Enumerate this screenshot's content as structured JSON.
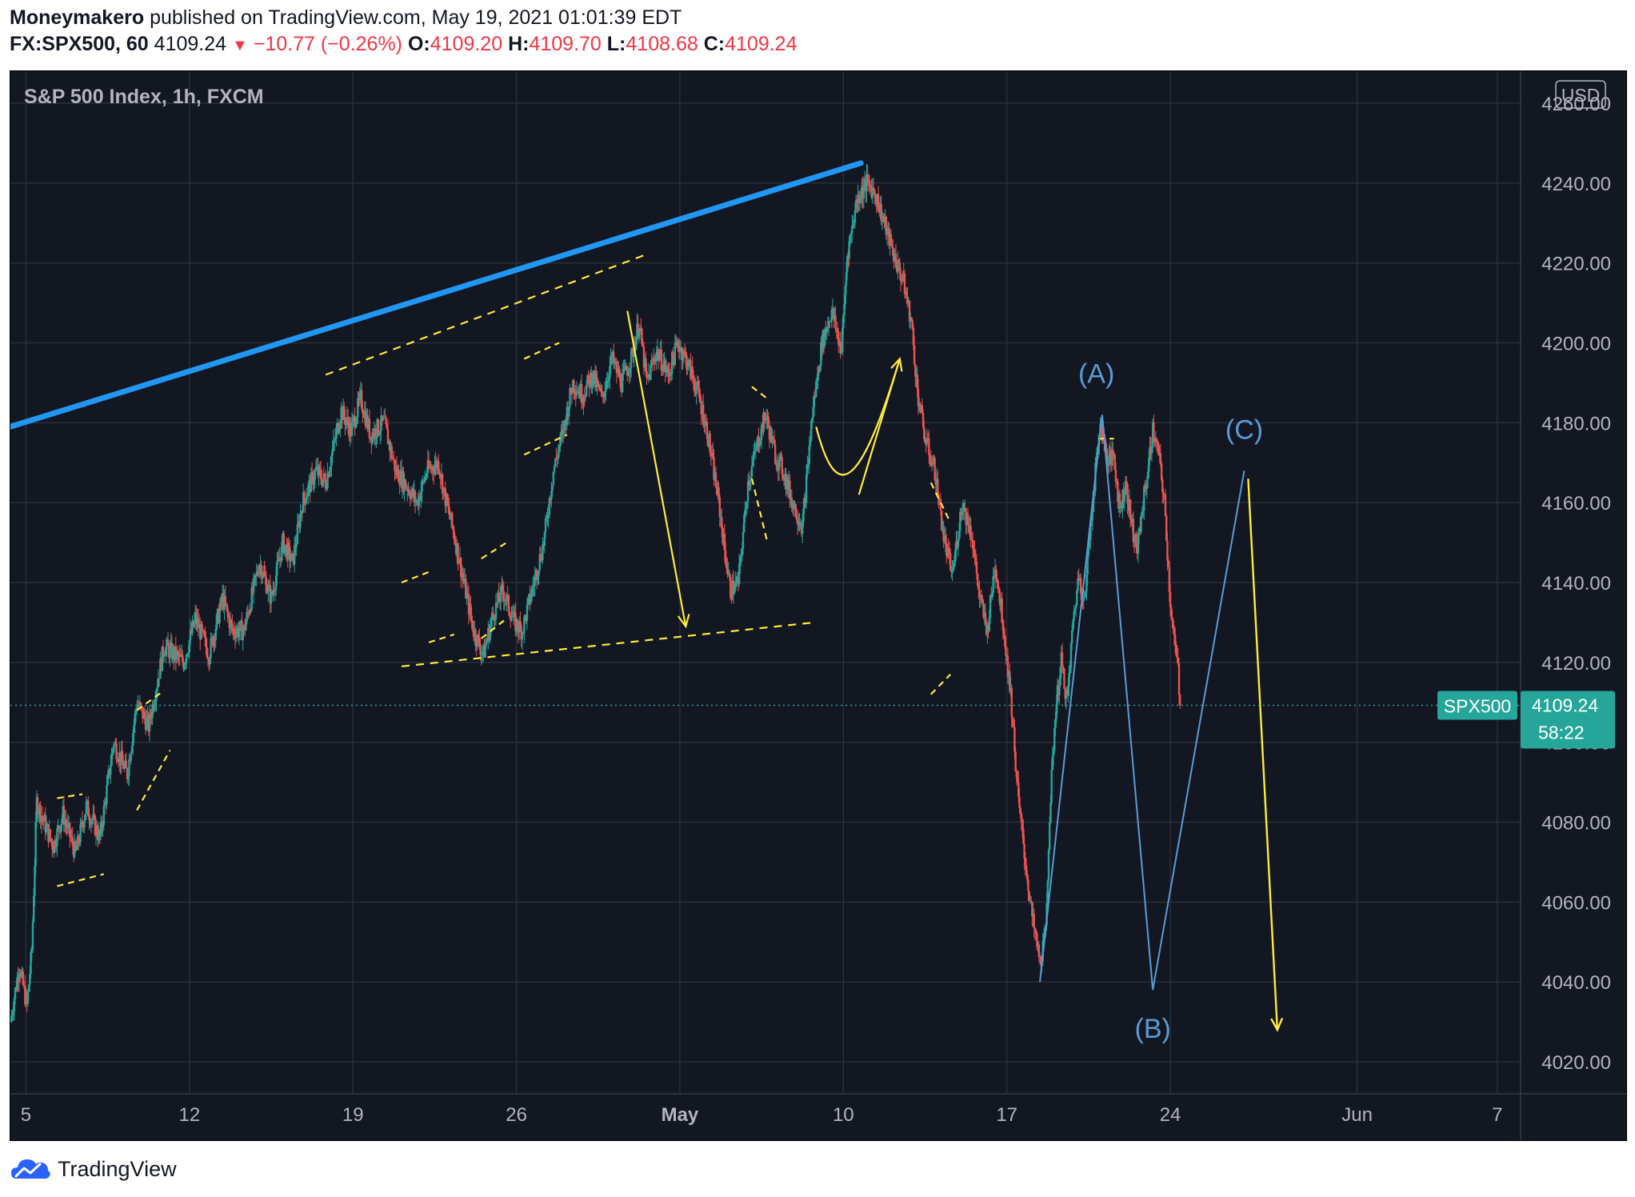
{
  "header": {
    "author": "Moneymakero",
    "published_text": "published on TradingView.com, May 19, 2021 01:01:39 EDT",
    "symbol": "FX:SPX500, 60",
    "last": "4109.24",
    "change": "−10.77 (−0.26%)",
    "o_label": "O:",
    "o_value": "4109.20",
    "h_label": "H:",
    "h_value": "4109.70",
    "l_label": "L:",
    "l_value": "4108.68",
    "c_label": "C:",
    "c_value": "4109.24",
    "down_arrow": "▼"
  },
  "footer": {
    "brand": "TradingView",
    "logo_icon": "tradingview-cloud-icon"
  },
  "colors": {
    "background": "#131722",
    "grid": "#2a2e39",
    "up": "#26a69a",
    "down": "#ef5350",
    "trendline": "#2196f3",
    "annotation": "#ffeb3b",
    "wave": "#5b9bd5",
    "price_badge": "#26a69a",
    "text": "#b2b5be"
  },
  "chart_data": {
    "type": "candlestick",
    "title": "S&P 500 Index, 1h, FXCM",
    "currency": "USD",
    "ylim": [
      4012,
      4268
    ],
    "yticks": [
      4260,
      4240,
      4220,
      4200,
      4180,
      4160,
      4140,
      4120,
      4100,
      4080,
      4060,
      4040,
      4020
    ],
    "ytick_labels": [
      "4260.00",
      "4240.00",
      "4220.00",
      "4200.00",
      "4180.00",
      "4160.00",
      "4140.00",
      "4120.00",
      "4100.00",
      "4080.00",
      "4060.00",
      "4040.00",
      "4020.00"
    ],
    "xlim": [
      "2021-04-04T08:00",
      "2021-06-08T00:00"
    ],
    "xticks": [
      {
        "date": "2021-04-05",
        "label": "5",
        "bold": false
      },
      {
        "date": "2021-04-12",
        "label": "12",
        "bold": false
      },
      {
        "date": "2021-04-19",
        "label": "19",
        "bold": false
      },
      {
        "date": "2021-04-26",
        "label": "26",
        "bold": false
      },
      {
        "date": "2021-05-03",
        "label": "May",
        "bold": true
      },
      {
        "date": "2021-05-10",
        "label": "10",
        "bold": false
      },
      {
        "date": "2021-05-17",
        "label": "17",
        "bold": false
      },
      {
        "date": "2021-05-24",
        "label": "24",
        "bold": false
      },
      {
        "date": "2021-06-01",
        "label": "Jun",
        "bold": false
      },
      {
        "date": "2021-06-07",
        "label": "7",
        "bold": false
      }
    ],
    "price_path": [
      [
        "2021-04-04T08:00",
        4030
      ],
      [
        "2021-04-04T17:00",
        4044
      ],
      [
        "2021-04-05T01:00",
        4034
      ],
      [
        "2021-04-05T06:00",
        4048
      ],
      [
        "2021-04-05T11:00",
        4085
      ],
      [
        "2021-04-06T04:00",
        4074
      ],
      [
        "2021-04-06T14:00",
        4082
      ],
      [
        "2021-04-07T03:00",
        4072
      ],
      [
        "2021-04-07T14:00",
        4084
      ],
      [
        "2021-04-08T04:00",
        4076
      ],
      [
        "2021-04-08T18:00",
        4100
      ],
      [
        "2021-04-09T08:00",
        4092
      ],
      [
        "2021-04-09T18:00",
        4110
      ],
      [
        "2021-04-10T06:00",
        4104
      ],
      [
        "2021-04-10T22:00",
        4124
      ],
      [
        "2021-04-11T18:00",
        4120
      ],
      [
        "2021-04-12T06:00",
        4131
      ],
      [
        "2021-04-12T20:00",
        4122
      ],
      [
        "2021-04-13T10:00",
        4136
      ],
      [
        "2021-04-13T20:00",
        4128
      ],
      [
        "2021-04-14T08:00",
        4128
      ],
      [
        "2021-04-15T00:00",
        4145
      ],
      [
        "2021-04-15T12:00",
        4136
      ],
      [
        "2021-04-16T00:00",
        4150
      ],
      [
        "2021-04-16T10:00",
        4145
      ],
      [
        "2021-04-16T20:00",
        4160
      ],
      [
        "2021-04-17T10:00",
        4168
      ],
      [
        "2021-04-17T20:00",
        4165
      ],
      [
        "2021-04-18T12:00",
        4183
      ],
      [
        "2021-04-18T22:00",
        4178
      ],
      [
        "2021-04-19T08:00",
        4186
      ],
      [
        "2021-04-19T18:00",
        4177
      ],
      [
        "2021-04-20T08:00",
        4180
      ],
      [
        "2021-04-20T20:00",
        4168
      ],
      [
        "2021-04-21T08:00",
        4164
      ],
      [
        "2021-04-21T18:00",
        4160
      ],
      [
        "2021-04-22T04:00",
        4168
      ],
      [
        "2021-04-22T16:00",
        4170
      ],
      [
        "2021-04-22T22:00",
        4162
      ],
      [
        "2021-04-23T08:00",
        4152
      ],
      [
        "2021-04-23T18:00",
        4140
      ],
      [
        "2021-04-24T04:00",
        4128
      ],
      [
        "2021-04-24T14:00",
        4122
      ],
      [
        "2021-04-25T00:00",
        4132
      ],
      [
        "2021-04-25T10:00",
        4138
      ],
      [
        "2021-04-25T22:00",
        4130
      ],
      [
        "2021-04-26T06:00",
        4128
      ],
      [
        "2021-04-26T18:00",
        4140
      ],
      [
        "2021-04-27T04:00",
        4150
      ],
      [
        "2021-04-27T14:00",
        4168
      ],
      [
        "2021-04-28T00:00",
        4178
      ],
      [
        "2021-04-28T10:00",
        4190
      ],
      [
        "2021-04-28T20:00",
        4187
      ],
      [
        "2021-04-29T06:00",
        4192
      ],
      [
        "2021-04-29T16:00",
        4186
      ],
      [
        "2021-04-30T02:00",
        4196
      ],
      [
        "2021-04-30T12:00",
        4190
      ],
      [
        "2021-04-30T22:00",
        4196
      ],
      [
        "2021-05-01T06:00",
        4205
      ],
      [
        "2021-05-01T14:00",
        4190
      ],
      [
        "2021-05-02T00:00",
        4198
      ],
      [
        "2021-05-02T12:00",
        4192
      ],
      [
        "2021-05-02T22:00",
        4200
      ],
      [
        "2021-05-03T08:00",
        4195
      ],
      [
        "2021-05-03T18:00",
        4188
      ],
      [
        "2021-05-04T04:00",
        4178
      ],
      [
        "2021-05-04T16:00",
        4160
      ],
      [
        "2021-05-04T22:00",
        4148
      ],
      [
        "2021-05-05T04:00",
        4138
      ],
      [
        "2021-05-05T12:00",
        4140
      ],
      [
        "2021-05-05T22:00",
        4165
      ],
      [
        "2021-05-06T08:00",
        4175
      ],
      [
        "2021-05-06T16:00",
        4182
      ],
      [
        "2021-05-07T02:00",
        4172
      ],
      [
        "2021-05-07T10:00",
        4168
      ],
      [
        "2021-05-07T20:00",
        4160
      ],
      [
        "2021-05-08T06:00",
        4154
      ],
      [
        "2021-05-08T16:00",
        4182
      ],
      [
        "2021-05-09T02:00",
        4200
      ],
      [
        "2021-05-09T12:00",
        4208
      ],
      [
        "2021-05-09T22:00",
        4198
      ],
      [
        "2021-05-10T04:00",
        4222
      ],
      [
        "2021-05-10T14:00",
        4236
      ],
      [
        "2021-05-11T00:00",
        4240
      ],
      [
        "2021-05-11T08:00",
        4238
      ],
      [
        "2021-05-11T18:00",
        4230
      ],
      [
        "2021-05-12T04:00",
        4222
      ],
      [
        "2021-05-12T14:00",
        4215
      ],
      [
        "2021-05-12T22:00",
        4205
      ],
      [
        "2021-05-13T04:00",
        4188
      ],
      [
        "2021-05-13T12:00",
        4176
      ],
      [
        "2021-05-13T22:00",
        4168
      ],
      [
        "2021-05-14T08:00",
        4150
      ],
      [
        "2021-05-14T16:00",
        4142
      ],
      [
        "2021-05-15T02:00",
        4160
      ],
      [
        "2021-05-15T12:00",
        4152
      ],
      [
        "2021-05-15T20:00",
        4136
      ],
      [
        "2021-05-16T04:00",
        4128
      ],
      [
        "2021-05-16T12:00",
        4145
      ],
      [
        "2021-05-16T20:00",
        4130
      ],
      [
        "2021-05-17T04:00",
        4112
      ],
      [
        "2021-05-17T12:00",
        4085
      ],
      [
        "2021-05-17T20:00",
        4068
      ],
      [
        "2021-05-18T02:00",
        4056
      ],
      [
        "2021-05-18T10:00",
        4045
      ],
      [
        "2021-05-18T16:00",
        4052
      ],
      [
        "2021-05-18T20:00",
        4082
      ],
      [
        "2021-05-19T02:00",
        4108
      ],
      [
        "2021-05-19T08:00",
        4120
      ],
      [
        "2021-05-19T14:00",
        4110
      ],
      [
        "2021-05-19T20:00",
        4130
      ],
      [
        "2021-05-20T02:00",
        4142
      ],
      [
        "2021-05-20T08:00",
        4135
      ],
      [
        "2021-05-20T14:00",
        4155
      ],
      [
        "2021-05-20T20:00",
        4170
      ],
      [
        "2021-05-21T00:00",
        4180
      ],
      [
        "2021-05-21T04:00",
        4175
      ],
      [
        "2021-05-21T08:00",
        4170
      ],
      [
        "2021-05-21T14:00",
        4172
      ],
      [
        "2021-05-21T20:00",
        4158
      ],
      [
        "2021-05-22T02:00",
        4165
      ],
      [
        "2021-05-22T08:00",
        4155
      ],
      [
        "2021-05-22T14:00",
        4148
      ],
      [
        "2021-05-22T20:00",
        4160
      ],
      [
        "2021-05-23T02:00",
        4170
      ],
      [
        "2021-05-23T06:00",
        4178
      ],
      [
        "2021-05-23T12:00",
        4172
      ],
      [
        "2021-05-23T18:00",
        4160
      ],
      [
        "2021-05-24T00:00",
        4135
      ],
      [
        "2021-05-24T04:00",
        4125
      ],
      [
        "2021-05-24T08:00",
        4118
      ],
      [
        "2021-05-24T10:00",
        4109.24
      ]
    ],
    "last_price": 4109.24,
    "last_price_label": "4109.24",
    "symbol_badge": "SPX500",
    "countdown": "58:22",
    "trendline": [
      [
        "2021-04-04T08:00",
        4179
      ],
      [
        "2021-05-10T18:00",
        4245
      ]
    ],
    "wave_points": [
      {
        "t": "2021-05-18T10:00",
        "p": 4040
      },
      {
        "t": "2021-05-21T02:00",
        "p": 4182
      },
      {
        "t": "2021-05-23T06:00",
        "p": 4038
      },
      {
        "t": "2021-05-27T04:00",
        "p": 4168
      }
    ],
    "wave_labels": [
      {
        "text": "(A)",
        "t": "2021-05-20T20:00",
        "p": 4190
      },
      {
        "text": "(B)",
        "t": "2021-05-23T06:00",
        "p": 4026
      },
      {
        "text": "(C)",
        "t": "2021-05-27T04:00",
        "p": 4176
      }
    ],
    "projection_arrow": [
      [
        "2021-05-27T08:00",
        4166
      ],
      [
        "2021-05-28T14:00",
        4028
      ]
    ],
    "channel_top": [
      [
        "2021-04-17T20:00",
        4192
      ],
      [
        "2021-05-01T12:00",
        4222
      ]
    ],
    "channel_bottom": [
      [
        "2021-04-21T02:00",
        4119
      ],
      [
        "2021-05-08T18:00",
        4130
      ]
    ],
    "drop_arrow": [
      [
        "2021-04-30T18:00",
        4208
      ],
      [
        "2021-05-03T06:00",
        4129
      ]
    ],
    "swing_curve": [
      [
        "2021-05-08T20:00",
        4179
      ],
      [
        "2021-05-09T16:00",
        4160
      ],
      [
        "2021-05-10T16:00",
        4162
      ],
      [
        "2021-05-12T10:00",
        4196
      ]
    ],
    "small_patterns": [
      [
        [
          "2021-04-06T08:00",
          4086
        ],
        [
          "2021-04-07T10:00",
          4087
        ]
      ],
      [
        [
          "2021-04-06T08:00",
          4064
        ],
        [
          "2021-04-08T08:00",
          4067
        ]
      ],
      [
        [
          "2021-04-09T18:00",
          4108
        ],
        [
          "2021-04-10T22:00",
          4113
        ]
      ],
      [
        [
          "2021-04-09T18:00",
          4083
        ],
        [
          "2021-04-11T04:00",
          4098
        ]
      ],
      [
        [
          "2021-04-21T02:00",
          4140
        ],
        [
          "2021-04-22T10:00",
          4143
        ]
      ],
      [
        [
          "2021-04-22T06:00",
          4125
        ],
        [
          "2021-04-23T08:00",
          4127
        ]
      ],
      [
        [
          "2021-04-24T12:00",
          4146
        ],
        [
          "2021-04-25T14:00",
          4150
        ]
      ],
      [
        [
          "2021-04-24T12:00",
          4126
        ],
        [
          "2021-04-25T14:00",
          4131
        ]
      ],
      [
        [
          "2021-04-26T08:00",
          4196
        ],
        [
          "2021-04-27T20:00",
          4200
        ]
      ],
      [
        [
          "2021-04-26T08:00",
          4172
        ],
        [
          "2021-04-28T04:00",
          4177
        ]
      ],
      [
        [
          "2021-05-06T02:00",
          4189
        ],
        [
          "2021-05-06T18:00",
          4186
        ]
      ],
      [
        [
          "2021-05-06T02:00",
          4166
        ],
        [
          "2021-05-06T18:00",
          4150
        ]
      ],
      [
        [
          "2021-05-13T18:00",
          4165
        ],
        [
          "2021-05-14T14:00",
          4155
        ]
      ],
      [
        [
          "2021-05-13T18:00",
          4112
        ],
        [
          "2021-05-14T14:00",
          4117
        ]
      ],
      [
        [
          "2021-05-20T22:00",
          4176
        ],
        [
          "2021-05-21T14:00",
          4176
        ]
      ]
    ]
  }
}
